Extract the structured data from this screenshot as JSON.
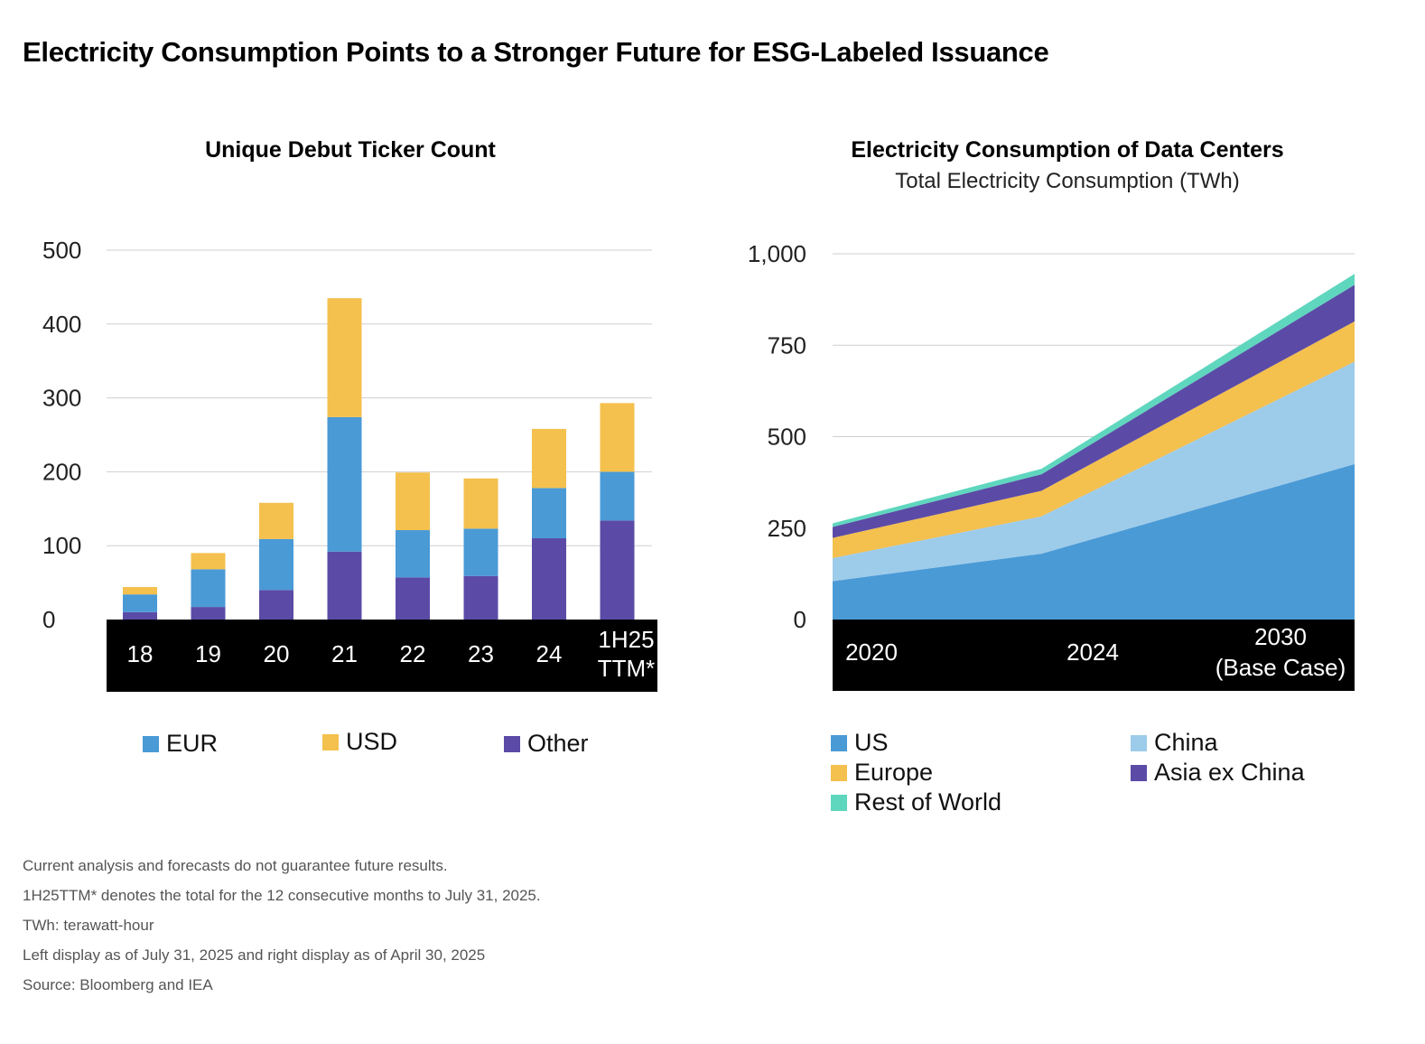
{
  "page": {
    "title": "Electricity Consumption Points to a Stronger Future for ESG-Labeled Issuance"
  },
  "chart_data": [
    {
      "type": "bar",
      "stacked": true,
      "title": "Unique Debut Ticker Count",
      "categories": [
        "18",
        "19",
        "20",
        "21",
        "22",
        "23",
        "24",
        "1H25\nTTM*"
      ],
      "series": [
        {
          "name": "Other",
          "color": "#5b4ba6",
          "values": [
            10,
            17,
            40,
            92,
            57,
            59,
            110,
            134
          ]
        },
        {
          "name": "EUR",
          "color": "#4a9ad6",
          "values": [
            24,
            51,
            69,
            182,
            64,
            64,
            68,
            66
          ]
        },
        {
          "name": "USD",
          "color": "#f4c04e",
          "values": [
            10,
            22,
            49,
            161,
            78,
            68,
            80,
            93
          ]
        }
      ],
      "legend_order": [
        "EUR",
        "USD",
        "Other"
      ],
      "ylim": [
        0,
        500
      ],
      "yticks": [
        0,
        100,
        200,
        300,
        400,
        500
      ],
      "ytick_labels": [
        "0",
        "100",
        "200",
        "300",
        "400",
        "500"
      ],
      "grid": true,
      "legend": "bottom"
    },
    {
      "type": "area",
      "stacked": true,
      "title": "Electricity Consumption of Data Centers",
      "subtitle": "Total Electricity Consumption (TWh)",
      "x": [
        2020,
        2024,
        2030
      ],
      "xtick_labels": [
        "2020",
        "2024",
        "2030\n(Base Case)"
      ],
      "series": [
        {
          "name": "US",
          "color": "#4a9ad6",
          "values": [
            105,
            180,
            425
          ]
        },
        {
          "name": "China",
          "color": "#9dcbea",
          "values": [
            63,
            102,
            280
          ]
        },
        {
          "name": "Europe",
          "color": "#f4c04e",
          "values": [
            55,
            70,
            110
          ]
        },
        {
          "name": "Asia ex China",
          "color": "#5b4ba6",
          "values": [
            30,
            45,
            100
          ]
        },
        {
          "name": "Rest of World",
          "color": "#5fd6be",
          "values": [
            10,
            15,
            30
          ]
        }
      ],
      "legend_order": [
        "US",
        "China",
        "Europe",
        "Asia ex China",
        "Rest of World"
      ],
      "ylim": [
        0,
        1000
      ],
      "yticks": [
        0,
        250,
        500,
        750,
        1000
      ],
      "ytick_labels": [
        "0",
        "250",
        "500",
        "750",
        "1,000"
      ],
      "grid": true,
      "legend": "bottom"
    }
  ],
  "notes": [
    "Current analysis and forecasts do not guarantee future results.",
    "1H25TTM* denotes the total for the 12 consecutive months to July 31, 2025.",
    "TWh: terawatt-hour",
    "Left display as of July 31, 2025 and right display as of April 30, 2025",
    "Source: Bloomberg and IEA"
  ]
}
